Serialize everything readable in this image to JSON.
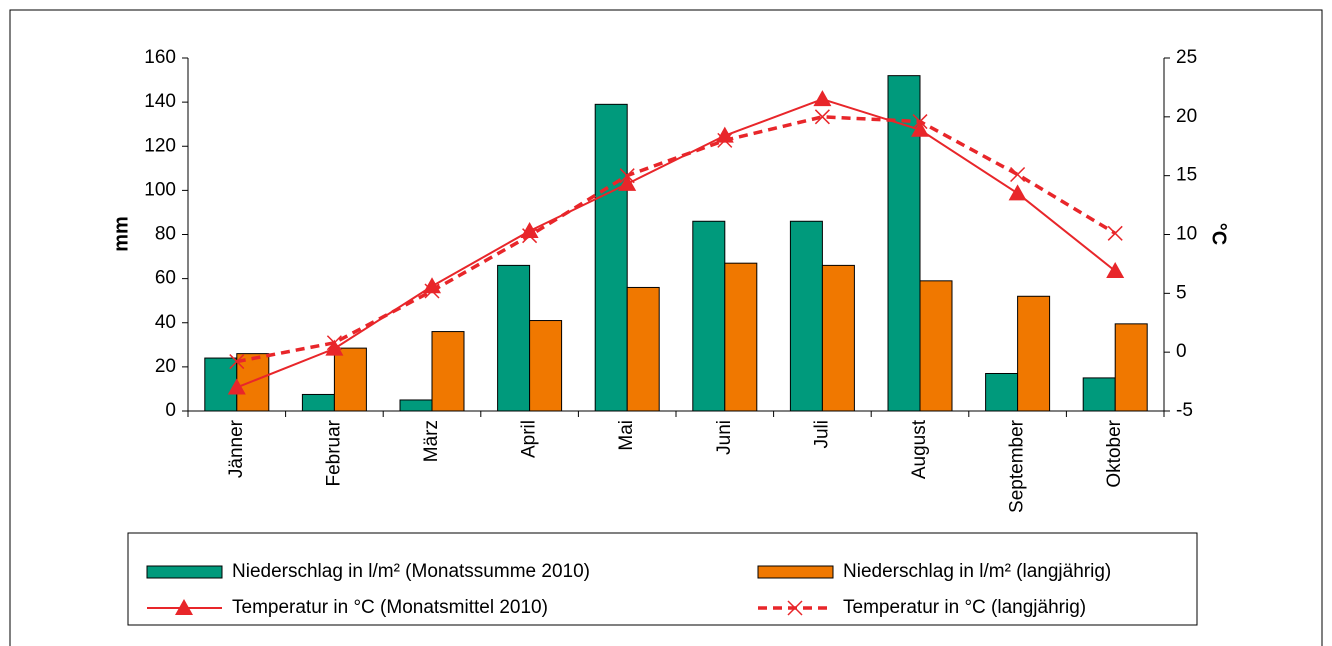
{
  "chart_data": {
    "type": "bar-line",
    "y_label": "mm",
    "y2_label": "°C",
    "categories": [
      "Jänner",
      "Februar",
      "März",
      "April",
      "Mai",
      "Juni",
      "Juli",
      "August",
      "September",
      "Oktober"
    ],
    "ylim": [
      0,
      160
    ],
    "yticks": [
      0,
      20,
      40,
      60,
      80,
      100,
      120,
      140,
      160
    ],
    "y2lim": [
      -5,
      25
    ],
    "y2ticks": [
      -5,
      0,
      5,
      10,
      15,
      20,
      25
    ],
    "series": [
      {
        "name": "Niederschlag in l/m² (Monatssumme 2010)",
        "type": "bar",
        "color": "#009a7c",
        "values": [
          24,
          7.5,
          5,
          66,
          139,
          86,
          86,
          152,
          17,
          15
        ]
      },
      {
        "name": "Niederschlag in l/m² (langjährig)",
        "type": "bar",
        "color": "#f07800",
        "values": [
          26,
          28.5,
          36,
          41,
          56,
          67,
          66,
          59,
          52,
          39.5
        ]
      },
      {
        "name": "Temperatur in °C (Monatsmittel 2010)",
        "type": "line",
        "axis": "y2",
        "color": "#e8262a",
        "marker": "triangle",
        "dashed": false,
        "values": [
          -3,
          0.3,
          5.6,
          10.3,
          14.3,
          18.4,
          21.5,
          18.9,
          13.5,
          6.9
        ]
      },
      {
        "name": "Temperatur in °C (langjährig)",
        "type": "line",
        "axis": "y2",
        "color": "#e8262a",
        "marker": "x",
        "dashed": true,
        "values": [
          -0.8,
          0.8,
          5.2,
          9.9,
          15,
          18,
          20,
          19.6,
          15.1,
          10.1
        ]
      }
    ]
  }
}
